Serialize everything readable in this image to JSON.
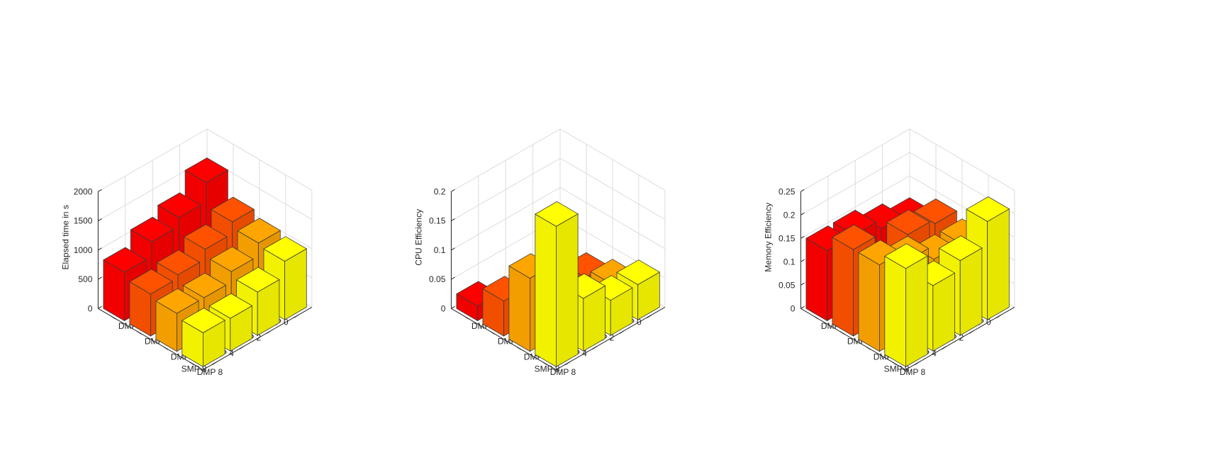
{
  "chart_data": [
    {
      "type": "bar3d",
      "ylabel": "Elapsed time in s",
      "rows": [
        "SMP 0",
        "SMP 2",
        "SMP 4",
        "SMP 8"
      ],
      "cols": [
        "DMP 0",
        "DMP 2",
        "DMP 4",
        "DMP 8"
      ],
      "zlim": [
        0,
        2000
      ],
      "zticks": [
        {
          "v": 0,
          "label": "0"
        },
        {
          "v": 500,
          "label": "500"
        },
        {
          "v": 1000,
          "label": "1000"
        },
        {
          "v": 1500,
          "label": "1500"
        },
        {
          "v": 2000,
          "label": "2000"
        }
      ],
      "values": [
        [
          1560,
          1150,
          1050,
          1000
        ],
        [
          1230,
          950,
          830,
          740
        ],
        [
          1080,
          780,
          650,
          560
        ],
        [
          830,
          720,
          650,
          580
        ]
      ]
    },
    {
      "type": "bar3d",
      "ylabel": "CPU Efficiency",
      "rows": [
        "SMP 0",
        "SMP 2",
        "SMP 4",
        "SMP 8"
      ],
      "cols": [
        "DMP 0",
        "DMP 2",
        "DMP 4",
        "DMP 8"
      ],
      "zlim": [
        0,
        0.2
      ],
      "zticks": [
        {
          "v": 0,
          "label": "0"
        },
        {
          "v": 0.05,
          "label": "0.05"
        },
        {
          "v": 0.1,
          "label": "0.1"
        },
        {
          "v": 0.15,
          "label": "0.15"
        },
        {
          "v": 0.2,
          "label": "0.2"
        }
      ],
      "values": [
        [
          0.005,
          0.02,
          0.035,
          0.06
        ],
        [
          0.005,
          0.025,
          0.03,
          0.06
        ],
        [
          0.005,
          0.03,
          0.04,
          0.09
        ],
        [
          0.025,
          0.06,
          0.125,
          0.24
        ]
      ]
    },
    {
      "type": "bar3d",
      "ylabel": "Memory Efficiency",
      "rows": [
        "SMP 0",
        "SMP 2",
        "SMP 4",
        "SMP 8"
      ],
      "cols": [
        "DMP 0",
        "DMP 2",
        "DMP 4",
        "DMP 8"
      ],
      "zlim": [
        0,
        0.25
      ],
      "zticks": [
        {
          "v": 0,
          "label": "0"
        },
        {
          "v": 0.05,
          "label": "0.05"
        },
        {
          "v": 0.1,
          "label": "0.1"
        },
        {
          "v": 0.15,
          "label": "0.15"
        },
        {
          "v": 0.2,
          "label": "0.2"
        },
        {
          "v": 0.25,
          "label": "0.25"
        }
      ],
      "values": [
        [
          0.11,
          0.14,
          0.13,
          0.21
        ],
        [
          0.13,
          0.15,
          0.13,
          0.16
        ],
        [
          0.15,
          0.11,
          0.16,
          0.14
        ],
        [
          0.15,
          0.185,
          0.185,
          0.21
        ]
      ]
    }
  ],
  "colors": [
    "#ff0000",
    "#ff5200",
    "#ffa500",
    "#ffff00"
  ],
  "edge_color": "#3a3a3a",
  "grid_color": "#dcdcdc"
}
